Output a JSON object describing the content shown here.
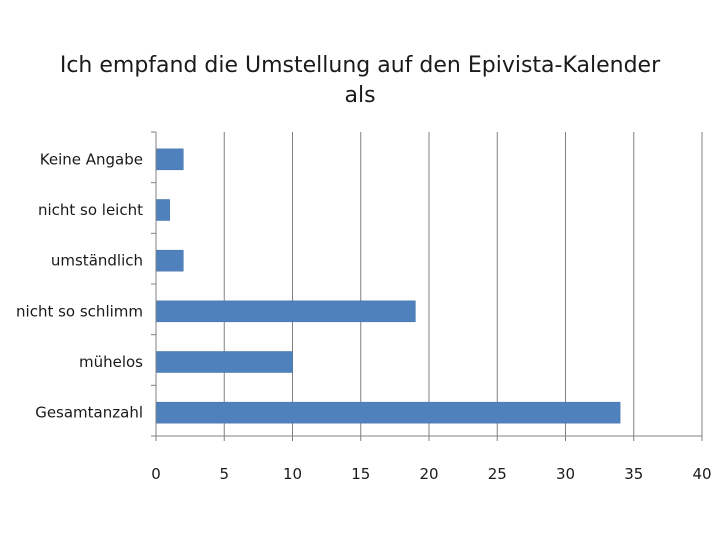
{
  "chart_data": {
    "type": "bar",
    "orientation": "horizontal",
    "title_lines": [
      "Ich empfand die Umstellung auf den Epivista-Kalender",
      "als"
    ],
    "categories": [
      "Keine Angabe",
      "nicht so leicht",
      "umständlich",
      "nicht so schlimm",
      "mühelos",
      "Gesamtanzahl"
    ],
    "values": [
      2,
      1,
      2,
      19,
      10,
      34
    ],
    "xlim": [
      0,
      40
    ],
    "xticks": [
      0,
      5,
      10,
      15,
      20,
      25,
      30,
      35,
      40
    ],
    "xlabel": "",
    "ylabel": "",
    "grid": "vertical",
    "legend": "none",
    "bar_color": "#4f81bd",
    "grid_color": "#808080"
  }
}
